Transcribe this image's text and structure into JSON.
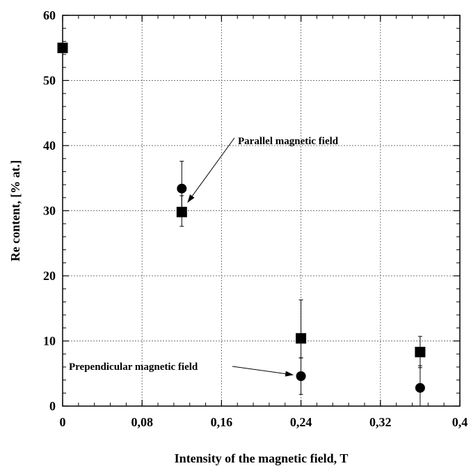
{
  "chart_data": {
    "type": "scatter",
    "title": "",
    "xlabel": "Intensity of the magnetic field, T",
    "ylabel": "Re content, [% at.]",
    "xlim": [
      0,
      0.4
    ],
    "ylim": [
      0,
      60
    ],
    "x_ticks": [
      0,
      0.08,
      0.16,
      0.24,
      0.32,
      0.4
    ],
    "x_tick_labels": [
      "0",
      "0,08",
      "0,16",
      "0,24",
      "0,32",
      "0,4"
    ],
    "y_ticks": [
      0,
      10,
      20,
      30,
      40,
      50,
      60
    ],
    "y_tick_labels": [
      "0",
      "10",
      "20",
      "30",
      "40",
      "50",
      "60"
    ],
    "grid": true,
    "series": [
      {
        "marker": "square",
        "points": [
          {
            "x": 0,
            "y": 55,
            "err_lo": 0,
            "err_hi": 0
          },
          {
            "x": 0.12,
            "y": 29.8,
            "err_lo": 2.2,
            "err_hi": 2.5
          },
          {
            "x": 0.24,
            "y": 10.4,
            "err_lo": 3.0,
            "err_hi": 5.9
          },
          {
            "x": 0.36,
            "y": 8.3,
            "err_lo": 2.4,
            "err_hi": 2.4
          }
        ]
      },
      {
        "marker": "circle",
        "points": [
          {
            "x": 0.12,
            "y": 33.4,
            "err_lo": 3.2,
            "err_hi": 4.2
          },
          {
            "x": 0.24,
            "y": 4.6,
            "err_lo": 2.8,
            "err_hi": 2.8
          },
          {
            "x": 0.36,
            "y": 2.8,
            "err_lo": 2.8,
            "err_hi": 3.4
          }
        ]
      }
    ],
    "annotations": [
      {
        "text": "Parallel magnetic field",
        "arrow_to": {
          "x": 0.126,
          "y": 31.3
        }
      },
      {
        "text": "Prependicular magnetic field",
        "arrow_to": {
          "x": 0.232,
          "y": 4.8
        }
      }
    ]
  }
}
